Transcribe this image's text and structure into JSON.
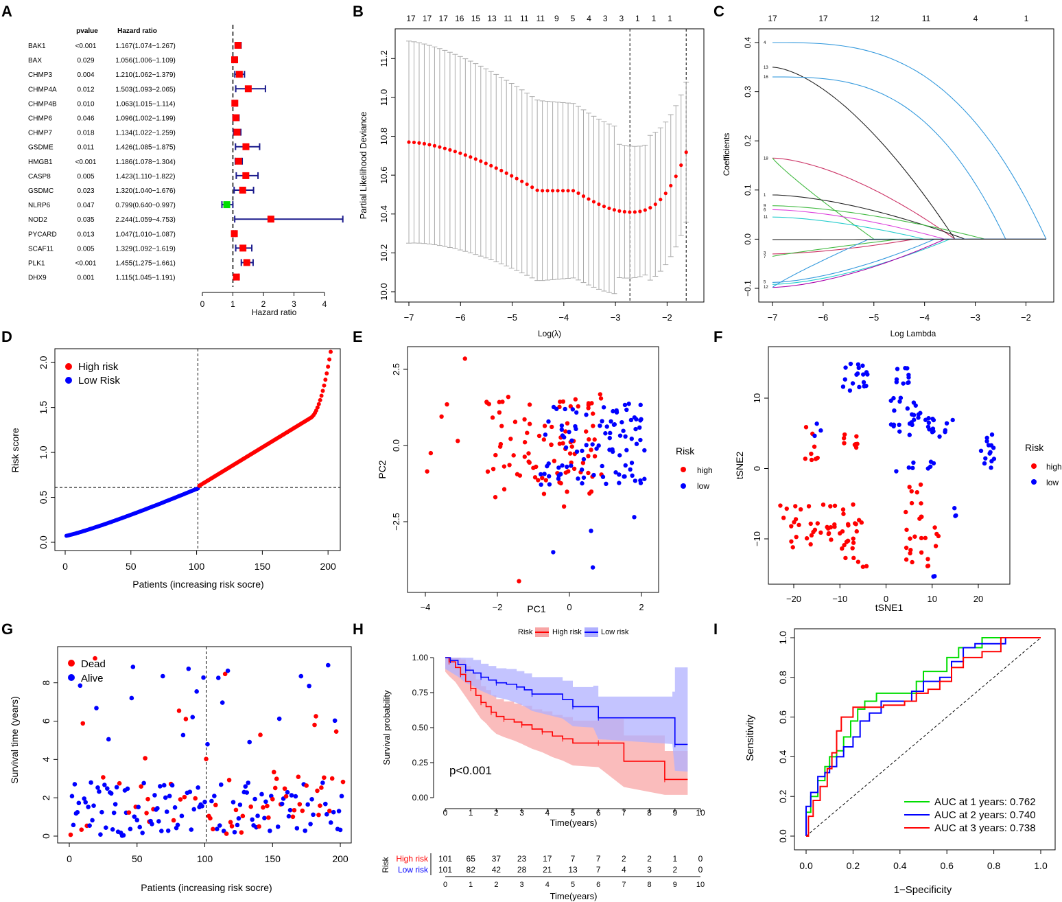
{
  "panel_letters": [
    "A",
    "B",
    "C",
    "D",
    "E",
    "F",
    "G",
    "H",
    "I"
  ],
  "chart_data": [
    {
      "id": "A",
      "type": "forest",
      "header": {
        "pvalue": "pvalue",
        "hr": "Hazard ratio"
      },
      "rows": [
        {
          "gene": "BAK1",
          "p": "<0.001",
          "hr_text": "1.167(1.074−1.267)",
          "hr": 1.167,
          "lo": 1.074,
          "hi": 1.267
        },
        {
          "gene": "BAX",
          "p": "0.029",
          "hr_text": "1.056(1.006−1.109)",
          "hr": 1.056,
          "lo": 1.006,
          "hi": 1.109
        },
        {
          "gene": "CHMP3",
          "p": "0.004",
          "hr_text": "1.210(1.062−1.379)",
          "hr": 1.21,
          "lo": 1.062,
          "hi": 1.379
        },
        {
          "gene": "CHMP4A",
          "p": "0.012",
          "hr_text": "1.503(1.093−2.065)",
          "hr": 1.503,
          "lo": 1.093,
          "hi": 2.065
        },
        {
          "gene": "CHMP4B",
          "p": "0.010",
          "hr_text": "1.063(1.015−1.114)",
          "hr": 1.063,
          "lo": 1.015,
          "hi": 1.114
        },
        {
          "gene": "CHMP6",
          "p": "0.046",
          "hr_text": "1.096(1.002−1.199)",
          "hr": 1.096,
          "lo": 1.002,
          "hi": 1.199
        },
        {
          "gene": "CHMP7",
          "p": "0.018",
          "hr_text": "1.134(1.022−1.259)",
          "hr": 1.134,
          "lo": 1.022,
          "hi": 1.259
        },
        {
          "gene": "GSDME",
          "p": "0.011",
          "hr_text": "1.426(1.085−1.875)",
          "hr": 1.426,
          "lo": 1.085,
          "hi": 1.875
        },
        {
          "gene": "HMGB1",
          "p": "<0.001",
          "hr_text": "1.186(1.078−1.304)",
          "hr": 1.186,
          "lo": 1.078,
          "hi": 1.304
        },
        {
          "gene": "CASP8",
          "p": "0.005",
          "hr_text": "1.423(1.110−1.822)",
          "hr": 1.423,
          "lo": 1.11,
          "hi": 1.822
        },
        {
          "gene": "GSDMC",
          "p": "0.023",
          "hr_text": "1.320(1.040−1.676)",
          "hr": 1.32,
          "lo": 1.04,
          "hi": 1.676
        },
        {
          "gene": "NLRP6",
          "p": "0.047",
          "hr_text": "0.799(0.640−0.997)",
          "hr": 0.799,
          "lo": 0.64,
          "hi": 0.997
        },
        {
          "gene": "NOD2",
          "p": "0.035",
          "hr_text": "2.244(1.059−4.753)",
          "hr": 2.244,
          "lo": 1.059,
          "hi": 4.753
        },
        {
          "gene": "PYCARD",
          "p": "0.013",
          "hr_text": "1.047(1.010−1.087)",
          "hr": 1.047,
          "lo": 1.01,
          "hi": 1.087
        },
        {
          "gene": "SCAF11",
          "p": "0.005",
          "hr_text": "1.329(1.092−1.619)",
          "hr": 1.329,
          "lo": 1.092,
          "hi": 1.619
        },
        {
          "gene": "PLK1",
          "p": "<0.001",
          "hr_text": "1.455(1.275−1.661)",
          "hr": 1.455,
          "lo": 1.275,
          "hi": 1.661
        },
        {
          "gene": "DHX9",
          "p": "0.001",
          "hr_text": "1.115(1.045−1.191)",
          "hr": 1.115,
          "lo": 1.045,
          "hi": 1.191
        }
      ],
      "xlabel": "Hazard ratio",
      "xlim": [
        0,
        4
      ],
      "xticks": [
        "0",
        "1",
        "2",
        "3",
        "4"
      ],
      "colors": {
        "risk": "#ff0000",
        "protective": "#00dd00",
        "ci": "#1a1a8c"
      }
    },
    {
      "id": "B",
      "type": "scatter",
      "xlabel": "Log(λ)",
      "ylabel": "Partial Likelihood Deviance",
      "xlim": [
        -7,
        -1.5
      ],
      "ylim": [
        10.0,
        11.3
      ],
      "xticks": [
        "−7",
        "−6",
        "−5",
        "−4",
        "−3",
        "−2"
      ],
      "yticks": [
        "10.0",
        "10.2",
        "10.4",
        "10.6",
        "10.8",
        "11.0",
        "11.2"
      ],
      "top_counts": [
        "17",
        "17",
        "17",
        "16",
        "15",
        "13",
        "11",
        "11",
        "11",
        "9",
        "5",
        "4",
        "3",
        "3",
        "1",
        "1",
        "1"
      ],
      "vlines": [
        -2.72,
        -1.63
      ],
      "color": "#ff0000"
    },
    {
      "id": "C",
      "type": "line",
      "xlabel": "Log Lambda",
      "ylabel": "Coefficients",
      "xlim": [
        -7,
        -1.6
      ],
      "ylim": [
        -0.1,
        0.4
      ],
      "xticks": [
        "−7",
        "−6",
        "−5",
        "−4",
        "−3",
        "−2"
      ],
      "yticks": [
        "−0.1",
        "0.0",
        "0.1",
        "0.2",
        "0.3",
        "0.4"
      ],
      "top_counts": [
        "17",
        "17",
        "12",
        "11",
        "4",
        "1"
      ],
      "path_labels": [
        "4",
        "13",
        "16",
        "18",
        "1",
        "9",
        "6",
        "11",
        "3",
        "7",
        "5",
        "12"
      ]
    },
    {
      "id": "D",
      "type": "scatter",
      "xlabel": "Patients (increasing risk socre)",
      "ylabel": "Risk score",
      "xlim": [
        0,
        202
      ],
      "ylim": [
        0,
        2.2
      ],
      "xticks": [
        "0",
        "50",
        "100",
        "150",
        "200"
      ],
      "yticks": [
        "0.0",
        "0.5",
        "1.0",
        "1.5",
        "2.0"
      ],
      "cutoff_x": 101,
      "cutoff_y": 0.61,
      "legend": [
        "High risk",
        "Low Risk"
      ],
      "colors": {
        "high": "#ff0000",
        "low": "#0000ff"
      }
    },
    {
      "id": "E",
      "type": "scatter",
      "xlabel": "PC1",
      "ylabel": "PC2",
      "xlim": [
        -4.2,
        2.5
      ],
      "ylim": [
        -4.6,
        3.0
      ],
      "xticks": [
        "−4",
        "−2",
        "0",
        "2"
      ],
      "yticks": [
        "−2.5",
        "0.0",
        "2.5"
      ],
      "legend_title": "Risk",
      "legend": [
        "high",
        "low"
      ]
    },
    {
      "id": "F",
      "type": "scatter",
      "xlabel": "tSNE1",
      "ylabel": "tSNE2",
      "xlim": [
        -25,
        25
      ],
      "ylim": [
        -16.5,
        17
      ],
      "xticks": [
        "−20",
        "−10",
        "0",
        "10",
        "20"
      ],
      "yticks": [
        "−10",
        "0",
        "10"
      ],
      "legend_title": "Risk",
      "legend": [
        "high",
        "low"
      ]
    },
    {
      "id": "G",
      "type": "scatter",
      "xlabel": "Patients (increasing risk socre)",
      "ylabel": "Survival time (years)",
      "xlim": [
        0,
        202
      ],
      "ylim": [
        0,
        9.6
      ],
      "xticks": [
        "0",
        "50",
        "100",
        "150",
        "200"
      ],
      "yticks": [
        "0",
        "2",
        "4",
        "6",
        "8"
      ],
      "cutoff_x": 101,
      "legend": [
        "Dead",
        "Alive"
      ]
    },
    {
      "id": "H",
      "type": "line",
      "xlabel": "Time(years)",
      "ylabel": "Survival probability",
      "xlim": [
        0,
        10
      ],
      "ylim": [
        0,
        1
      ],
      "xticks": [
        "0",
        "1",
        "2",
        "3",
        "4",
        "5",
        "6",
        "7",
        "8",
        "9",
        "10"
      ],
      "yticks": [
        "0.00",
        "0.25",
        "0.50",
        "0.75",
        "1.00"
      ],
      "legend_title": "Risk",
      "legend": [
        "High risk",
        "Low risk"
      ],
      "pvalue": "p<0.001",
      "risk_table": {
        "title": "Risk",
        "rows": [
          {
            "label": "High risk",
            "values": [
              "101",
              "65",
              "37",
              "23",
              "17",
              "7",
              "7",
              "2",
              "2",
              "1",
              "0"
            ]
          },
          {
            "label": "Low risk",
            "values": [
              "101",
              "82",
              "42",
              "28",
              "21",
              "13",
              "7",
              "4",
              "3",
              "2",
              "0"
            ]
          }
        ]
      },
      "series": [
        {
          "name": "High risk",
          "points": [
            [
              0,
              1.0
            ],
            [
              0.15,
              0.97
            ],
            [
              0.4,
              0.93
            ],
            [
              0.6,
              0.88
            ],
            [
              0.8,
              0.83
            ],
            [
              1.0,
              0.78
            ],
            [
              1.2,
              0.73
            ],
            [
              1.4,
              0.68
            ],
            [
              1.6,
              0.65
            ],
            [
              1.8,
              0.61
            ],
            [
              2.0,
              0.58
            ],
            [
              2.3,
              0.56
            ],
            [
              2.7,
              0.54
            ],
            [
              3.0,
              0.52
            ],
            [
              3.4,
              0.49
            ],
            [
              3.8,
              0.47
            ],
            [
              4.2,
              0.44
            ],
            [
              4.6,
              0.42
            ],
            [
              5.0,
              0.39
            ],
            [
              6.0,
              0.39
            ],
            [
              7.0,
              0.26
            ],
            [
              8.6,
              0.13
            ],
            [
              9.5,
              0.13
            ]
          ],
          "color": "#ff0000",
          "band": "#f8a5a5"
        },
        {
          "name": "Low risk",
          "points": [
            [
              0,
              1.0
            ],
            [
              0.2,
              0.98
            ],
            [
              0.5,
              0.95
            ],
            [
              0.8,
              0.91
            ],
            [
              1.1,
              0.89
            ],
            [
              1.4,
              0.86
            ],
            [
              1.7,
              0.84
            ],
            [
              2.0,
              0.82
            ],
            [
              2.4,
              0.81
            ],
            [
              2.8,
              0.79
            ],
            [
              3.1,
              0.77
            ],
            [
              3.4,
              0.74
            ],
            [
              4.6,
              0.7
            ],
            [
              5.0,
              0.65
            ],
            [
              5.8,
              0.65
            ],
            [
              6.0,
              0.57
            ],
            [
              8.9,
              0.57
            ],
            [
              9.0,
              0.38
            ],
            [
              9.5,
              0.38
            ]
          ],
          "color": "#0000ff",
          "band": "#b0b0ff"
        }
      ]
    },
    {
      "id": "I",
      "type": "line",
      "xlabel": "1−Specificity",
      "ylabel": "Sensitivity",
      "xlim": [
        0,
        1
      ],
      "ylim": [
        0,
        1
      ],
      "xticks": [
        "0.0",
        "0.2",
        "0.4",
        "0.6",
        "0.8",
        "1.0"
      ],
      "yticks": [
        "0.0",
        "0.2",
        "0.4",
        "0.6",
        "0.8",
        "1.0"
      ],
      "legend": [
        "AUC at 1 years: 0.762",
        "AUC at 2 years: 0.740",
        "AUC at 3 years: 0.738"
      ],
      "series": [
        {
          "name": "1 years",
          "auc": 0.762,
          "color": "#00dd00",
          "points": [
            [
              0,
              0
            ],
            [
              0,
              0.12
            ],
            [
              0.02,
              0.2
            ],
            [
              0.05,
              0.28
            ],
            [
              0.08,
              0.35
            ],
            [
              0.1,
              0.4
            ],
            [
              0.13,
              0.43
            ],
            [
              0.16,
              0.5
            ],
            [
              0.19,
              0.58
            ],
            [
              0.22,
              0.64
            ],
            [
              0.25,
              0.68
            ],
            [
              0.3,
              0.72
            ],
            [
              0.43,
              0.72
            ],
            [
              0.47,
              0.78
            ],
            [
              0.5,
              0.83
            ],
            [
              0.58,
              0.83
            ],
            [
              0.6,
              0.9
            ],
            [
              0.65,
              0.95
            ],
            [
              0.75,
              1.0
            ],
            [
              1.0,
              1.0
            ]
          ]
        },
        {
          "name": "2 years",
          "auc": 0.74,
          "color": "#0000ff",
          "points": [
            [
              0,
              0
            ],
            [
              0,
              0.15
            ],
            [
              0.02,
              0.22
            ],
            [
              0.05,
              0.3
            ],
            [
              0.08,
              0.32
            ],
            [
              0.1,
              0.35
            ],
            [
              0.13,
              0.4
            ],
            [
              0.16,
              0.45
            ],
            [
              0.2,
              0.5
            ],
            [
              0.23,
              0.58
            ],
            [
              0.27,
              0.62
            ],
            [
              0.32,
              0.68
            ],
            [
              0.4,
              0.68
            ],
            [
              0.45,
              0.73
            ],
            [
              0.5,
              0.78
            ],
            [
              0.57,
              0.8
            ],
            [
              0.62,
              0.88
            ],
            [
              0.67,
              0.95
            ],
            [
              0.72,
              0.97
            ],
            [
              0.85,
              1.0
            ],
            [
              1.0,
              1.0
            ]
          ]
        },
        {
          "name": "3 years",
          "auc": 0.738,
          "color": "#ff0000",
          "points": [
            [
              0,
              0
            ],
            [
              0.01,
              0.1
            ],
            [
              0.03,
              0.18
            ],
            [
              0.06,
              0.25
            ],
            [
              0.09,
              0.34
            ],
            [
              0.11,
              0.42
            ],
            [
              0.13,
              0.53
            ],
            [
              0.15,
              0.6
            ],
            [
              0.2,
              0.65
            ],
            [
              0.28,
              0.65
            ],
            [
              0.33,
              0.66
            ],
            [
              0.42,
              0.68
            ],
            [
              0.47,
              0.72
            ],
            [
              0.52,
              0.74
            ],
            [
              0.57,
              0.78
            ],
            [
              0.62,
              0.85
            ],
            [
              0.67,
              0.9
            ],
            [
              0.75,
              0.93
            ],
            [
              0.83,
              1.0
            ],
            [
              1.0,
              1.0
            ]
          ]
        }
      ]
    }
  ]
}
